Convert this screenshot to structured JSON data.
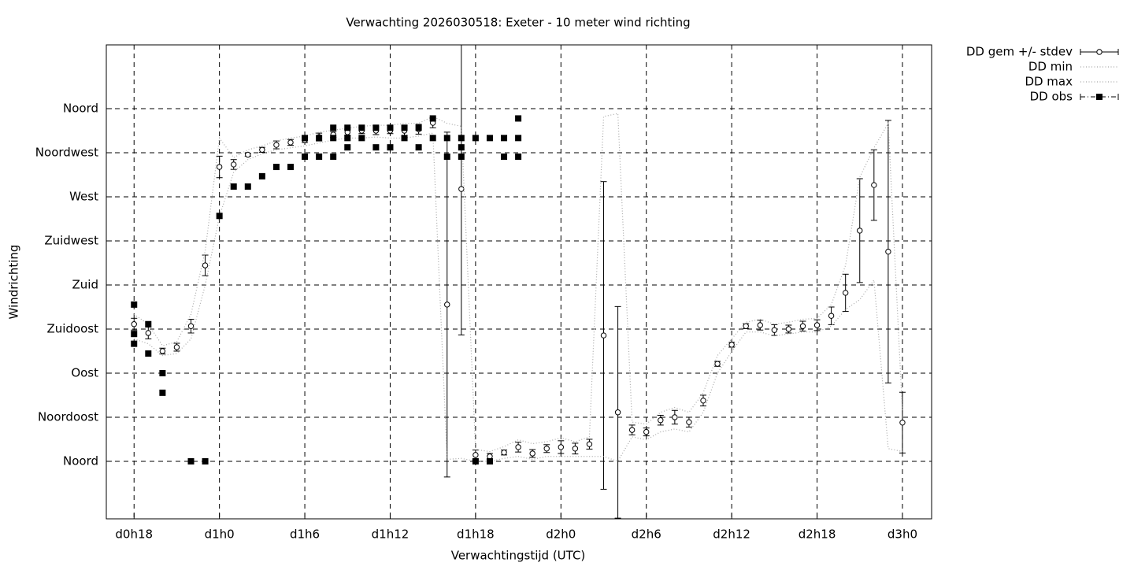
{
  "chart_data": {
    "type": "errorbar",
    "title": "Verwachting 2026030518: Exeter - 10 meter wind richting",
    "xlabel": "Verwachtingstijd (UTC)",
    "ylabel": "Windrichting",
    "xlim": [
      16.05,
      74.05
    ],
    "ylim": [
      -58.7,
      425.1
    ],
    "grid": true,
    "xticks": [
      {
        "value": 18,
        "label": "d0h18"
      },
      {
        "value": 24,
        "label": "d1h0"
      },
      {
        "value": 30,
        "label": "d1h6"
      },
      {
        "value": 36,
        "label": "d1h12"
      },
      {
        "value": 42,
        "label": "d1h18"
      },
      {
        "value": 48,
        "label": "d2h0"
      },
      {
        "value": 54,
        "label": "d2h6"
      },
      {
        "value": 60,
        "label": "d2h12"
      },
      {
        "value": 66,
        "label": "d2h18"
      },
      {
        "value": 72,
        "label": "d3h0"
      }
    ],
    "yticks": [
      {
        "value": 0,
        "label": "Noord"
      },
      {
        "value": 45,
        "label": "Noordoost"
      },
      {
        "value": 90,
        "label": "Oost"
      },
      {
        "value": 135,
        "label": "Zuidoost"
      },
      {
        "value": 180,
        "label": "Zuid"
      },
      {
        "value": 225,
        "label": "Zuidwest"
      },
      {
        "value": 270,
        "label": "West"
      },
      {
        "value": 315,
        "label": "Noordwest"
      },
      {
        "value": 360,
        "label": "Noord"
      }
    ],
    "x": [
      18,
      19,
      20,
      21,
      22,
      23,
      24,
      25,
      26,
      27,
      28,
      29,
      30,
      31,
      32,
      33,
      34,
      35,
      36,
      37,
      38,
      39,
      40,
      41,
      42,
      43,
      44,
      45,
      46,
      47,
      48,
      49,
      50,
      51,
      52,
      53,
      54,
      55,
      56,
      57,
      58,
      59,
      60,
      61,
      62,
      63,
      64,
      65,
      66,
      67,
      68,
      69,
      70,
      71,
      72
    ],
    "series": [
      {
        "name": "DD gem +/- stdev",
        "style": "errorbar",
        "color": "#000000",
        "values": [
          140,
          131,
          112.5,
          116.5,
          138,
          200,
          300.5,
          303,
          313,
          318,
          323,
          325.5,
          328,
          331,
          333.5,
          336,
          337.5,
          337.5,
          337.5,
          337.5,
          339,
          345.5,
          160,
          278,
          6.5,
          5,
          9,
          14.5,
          8,
          13,
          14.5,
          13,
          17.5,
          128.5,
          50,
          32,
          30,
          42,
          45,
          40,
          62,
          99.5,
          119,
          138,
          139,
          134,
          135,
          138,
          139,
          148.5,
          172,
          235.5,
          282,
          214,
          39.5
        ],
        "stdev": [
          6,
          6,
          3,
          4,
          7,
          10.5,
          11,
          5,
          1.5,
          2.5,
          4,
          3,
          2.5,
          4,
          3,
          3,
          3,
          4,
          3,
          5,
          5,
          5,
          176,
          149,
          5,
          3,
          2.5,
          5,
          4,
          4,
          6.5,
          5.5,
          5,
          157,
          108,
          5,
          4,
          5,
          7,
          5,
          5.5,
          2.5,
          2.5,
          2.5,
          5,
          5.5,
          4,
          5,
          5.5,
          9,
          19,
          53,
          36,
          134,
          31
        ]
      },
      {
        "name": "DD min",
        "style": "dotted",
        "color": "#a8a8a8",
        "values": [
          125,
          120,
          108,
          110,
          125,
          180,
          250,
          295,
          308,
          314,
          318,
          320,
          322,
          325,
          328,
          330,
          330,
          331,
          330,
          330,
          332,
          335,
          2,
          3,
          0,
          0,
          3,
          5,
          2,
          5,
          5,
          5,
          5,
          5,
          0,
          25,
          22,
          30,
          33,
          30,
          50,
          90,
          112,
          132,
          132,
          128,
          130,
          132,
          132,
          138,
          155,
          165,
          185,
          13,
          10
        ]
      },
      {
        "name": "DD max",
        "style": "dotted",
        "color": "#a8a8a8",
        "values": [
          150,
          140,
          118,
          122,
          150,
          215,
          330,
          310,
          318,
          322,
          327,
          330,
          332,
          336,
          338,
          340,
          342,
          343,
          343,
          345,
          345,
          352,
          345,
          342,
          12,
          10,
          15,
          22,
          18,
          20,
          24,
          20,
          25,
          352,
          355,
          40,
          38,
          50,
          55,
          50,
          70,
          108,
          125,
          142,
          145,
          140,
          142,
          145,
          146,
          160,
          200,
          290,
          320,
          345,
          50
        ]
      },
      {
        "name": "DD obs",
        "style": "points",
        "color": "#000000",
        "x": [
          18,
          18,
          18,
          19,
          19,
          20,
          20,
          22,
          23,
          24,
          25,
          26,
          27,
          28,
          29,
          30,
          30,
          31,
          31,
          32,
          32,
          32,
          33,
          33,
          33,
          34,
          34,
          35,
          35,
          36,
          36,
          37,
          37,
          38,
          38,
          39,
          39,
          40,
          40,
          41,
          41,
          41,
          42,
          42,
          43,
          43,
          44,
          44,
          45,
          45,
          45
        ],
        "values": [
          160,
          130,
          120,
          140,
          110,
          90,
          70,
          0,
          0,
          250.5,
          280.5,
          280.5,
          291,
          300.5,
          300.5,
          330,
          311,
          330,
          311,
          340.5,
          330,
          311,
          340.5,
          330,
          320.5,
          340.5,
          330,
          340.5,
          320.5,
          340.5,
          320.5,
          340.5,
          330,
          340.5,
          320.5,
          350,
          330,
          330,
          311,
          330,
          320.5,
          311,
          330,
          0,
          330,
          0,
          330,
          311,
          350,
          330,
          311
        ]
      }
    ]
  }
}
